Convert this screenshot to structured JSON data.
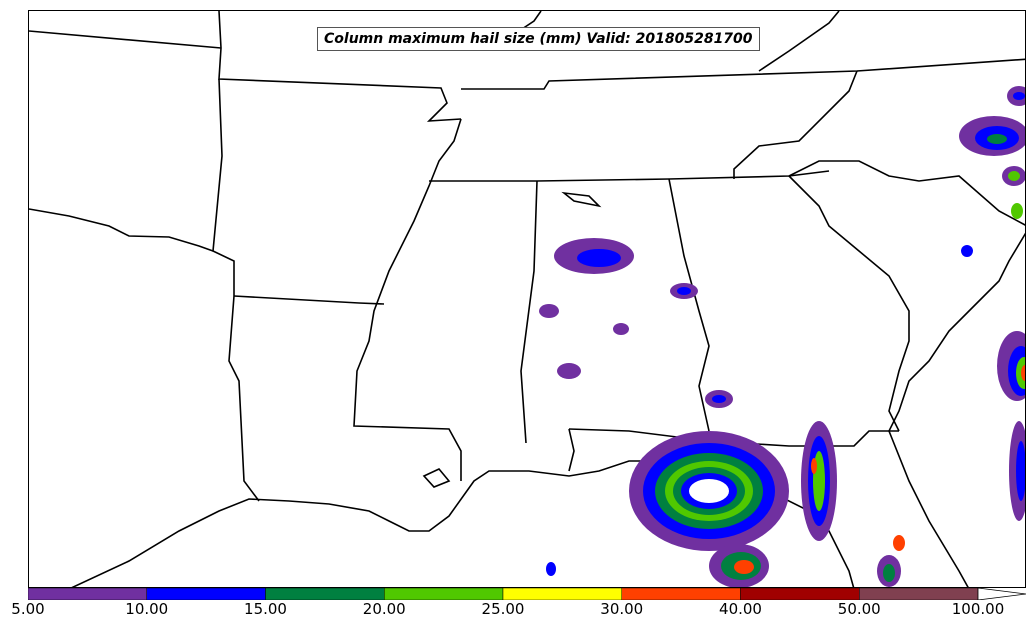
{
  "title": "Column maximum hail size (mm) Valid: 201805281700",
  "colorbar": {
    "labels": [
      "5.00",
      "10.00",
      "15.00",
      "20.00",
      "25.00",
      "30.00",
      "40.00",
      "50.00",
      "100.00"
    ],
    "colors": [
      "#7030a0",
      "#0000ff",
      "#008040",
      "#50c800",
      "#ffff00",
      "#ff4000",
      "#a00000",
      "#804050"
    ],
    "extend": "max"
  },
  "colors": {
    "border": "#000000",
    "background": "#ffffff"
  }
}
